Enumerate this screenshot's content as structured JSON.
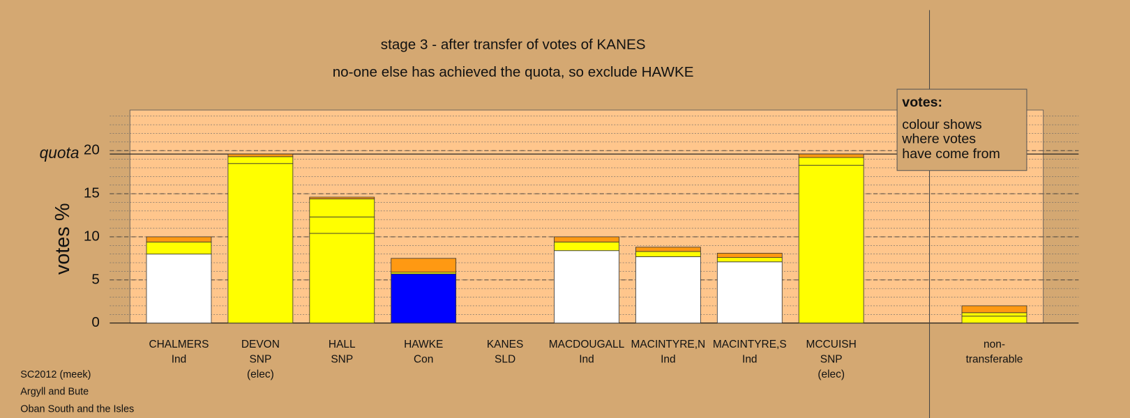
{
  "chart_data": {
    "type": "stacked_bar",
    "title": "stage 3 - after transfer of votes of KANES",
    "subtitle": "no-one else has achieved the quota, so exclude HAWKE",
    "y_label": "votes %",
    "categories": [
      [
        "CHALMERS",
        "Ind"
      ],
      [
        "DEVON",
        "SNP",
        "(elec)"
      ],
      [
        "HALL",
        "SNP"
      ],
      [
        "HAWKE",
        "Con"
      ],
      [
        "KANES",
        "SLD"
      ],
      [
        "MACDOUGALL",
        "Ind"
      ],
      [
        "MACINTYRE,N",
        "Ind"
      ],
      [
        "MACINTYRE,S",
        "Ind"
      ],
      [
        "MCCUISH",
        "SNP",
        "(elec)"
      ],
      [
        "non-",
        "transferable"
      ]
    ],
    "series": [
      {
        "colors": [
          "#ffffff",
          "#ffff00",
          "#ffff00",
          "#0000ff",
          "#ff9912",
          "#ffffff",
          "#ffffff",
          "#ffffff",
          "#ffff00",
          "#ffffff"
        ],
        "values": [
          8.0,
          18.5,
          10.4,
          5.7,
          0,
          8.4,
          7.7,
          7.1,
          18.3,
          0
        ]
      },
      {
        "color": "#ffff00",
        "values": [
          1.4,
          0.8,
          1.9,
          0.2,
          0,
          1.0,
          0.6,
          0.5,
          0.9,
          0.8
        ]
      },
      {
        "color": "#ffff00",
        "values": [
          0,
          0,
          2.1,
          0,
          0,
          0,
          0,
          0,
          0,
          0.4
        ]
      },
      {
        "color": "#ff9912",
        "values": [
          0.6,
          0.3,
          0.2,
          1.6,
          0,
          0.6,
          0.5,
          0.5,
          0.4,
          0.8
        ]
      }
    ],
    "quota": {
      "label": "quota",
      "value": 19.6
    },
    "ylim": [
      0,
      24.7
    ],
    "yticks": [
      0,
      5,
      10,
      15,
      20
    ],
    "grid": true,
    "legend_box": {
      "title": "votes:",
      "lines": [
        "colour shows",
        "where votes",
        "have come from"
      ]
    },
    "footnotes": [
      "SC2012 (meek)",
      "Argyll and Bute",
      "Oban South and the Isles"
    ]
  }
}
